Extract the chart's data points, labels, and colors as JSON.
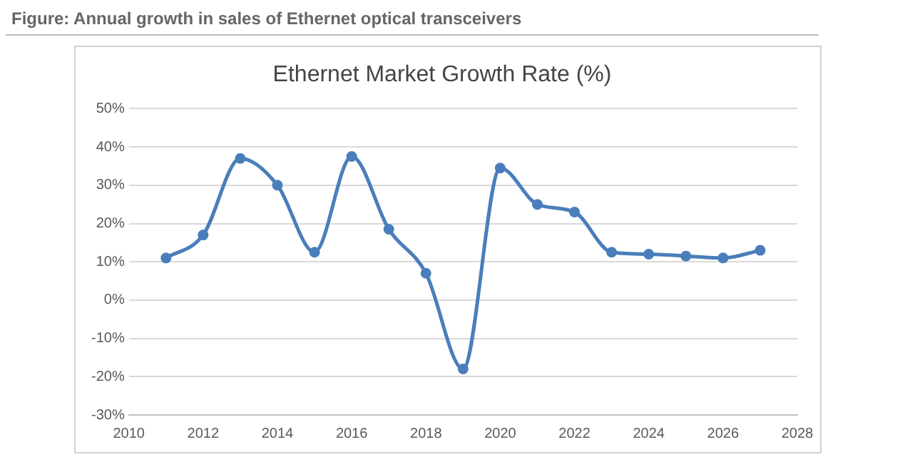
{
  "chart_data": {
    "type": "line",
    "title": "Figure: Annual growth in sales of Ethernet optical transceivers",
    "subtitle": "Ethernet Market Growth Rate (%)",
    "x": [
      2011,
      2012,
      2013,
      2014,
      2015,
      2016,
      2017,
      2018,
      2019,
      2020,
      2021,
      2022,
      2023,
      2024,
      2025,
      2026,
      2027
    ],
    "series": [
      {
        "color": "#4a7ebb",
        "values": [
          11,
          17,
          37,
          30,
          12.5,
          37.5,
          18.5,
          7,
          -18,
          34.5,
          25,
          23,
          12.5,
          12,
          11.5,
          11,
          13
        ]
      }
    ],
    "xlim": [
      2010,
      2028
    ],
    "xticks": [
      2010,
      2012,
      2014,
      2016,
      2018,
      2020,
      2022,
      2024,
      2026,
      2028
    ],
    "ylim": [
      -30,
      50
    ],
    "yticks": [
      {
        "value": -30,
        "label": "-30%"
      },
      {
        "value": -20,
        "label": "-20%"
      },
      {
        "value": -10,
        "label": "-10%"
      },
      {
        "value": 0,
        "label": "0%"
      },
      {
        "value": 10,
        "label": "10%"
      },
      {
        "value": 20,
        "label": "20%"
      },
      {
        "value": 30,
        "label": "30%"
      },
      {
        "value": 40,
        "label": "40%"
      },
      {
        "value": 50,
        "label": "50%"
      }
    ],
    "grid": "y",
    "marker": "circle",
    "line_style": "solid",
    "legend": false
  }
}
